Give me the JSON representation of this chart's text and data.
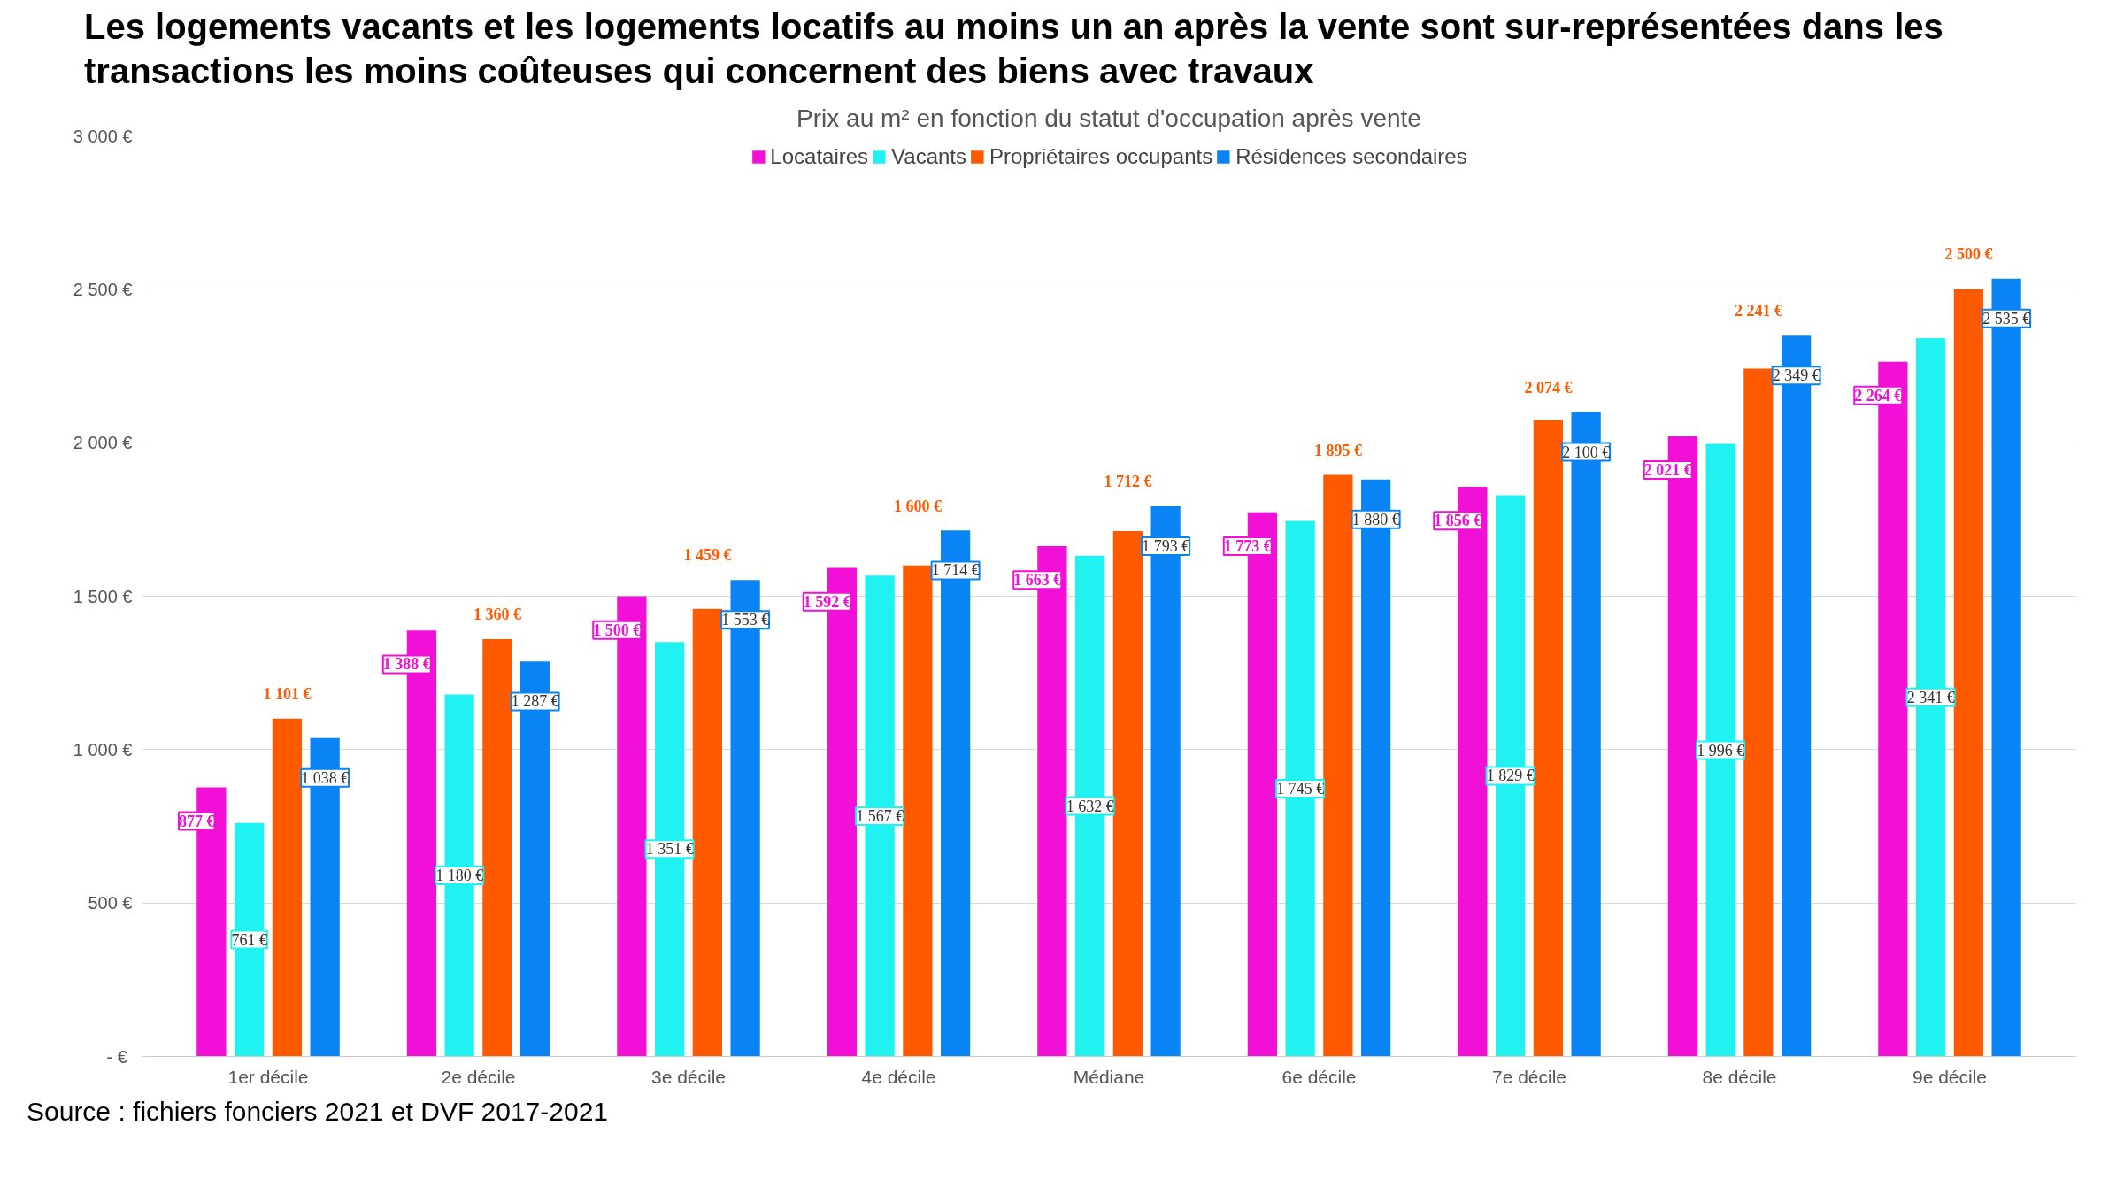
{
  "chart_data": {
    "type": "bar",
    "title": "Les logements vacants et les logements locatifs au moins un an après la vente sont sur-représentées dans les transactions les moins coûteuses qui concernent des biens avec travaux",
    "subtitle": "Prix au m² en fonction du statut d'occupation après vente",
    "categories": [
      "1er décile",
      "2e décile",
      "3e décile",
      "4e décile",
      "Médiane",
      "6e décile",
      "7e décile",
      "8e décile",
      "9e décile"
    ],
    "series": [
      {
        "name": "Locataires",
        "color": "#f20fd6",
        "values": [
          877,
          1388,
          1500,
          1592,
          1663,
          1773,
          1856,
          2021,
          2264
        ],
        "value_labels": [
          "877 €",
          "1 388 €",
          "1 500 €",
          "1 592 €",
          "1 663 €",
          "1 773 €",
          "1 856 €",
          "2 021 €",
          "2 264 €"
        ]
      },
      {
        "name": "Vacants",
        "color": "#1ff2f0",
        "values": [
          761,
          1180,
          1351,
          1567,
          1632,
          1745,
          1829,
          1996,
          2341
        ],
        "value_labels": [
          "761 €",
          "1 180 €",
          "1 351 €",
          "1 567 €",
          "1 632 €",
          "1 745 €",
          "1 829 €",
          "1 996 €",
          "2 341 €"
        ]
      },
      {
        "name": "Propriétaires occupants",
        "color": "#ff5a00",
        "values": [
          1101,
          1360,
          1459,
          1600,
          1712,
          1895,
          2074,
          2241,
          2500
        ],
        "value_labels": [
          "1 101 €",
          "1 360 €",
          "1 459 €",
          "1 600 €",
          "1 712 €",
          "1 895 €",
          "2 074 €",
          "2 241 €",
          "2 500 €"
        ]
      },
      {
        "name": "Résidences secondaires",
        "color": "#0a84f5",
        "values": [
          1038,
          1287,
          1553,
          1714,
          1793,
          1880,
          2100,
          2349,
          2535
        ],
        "value_labels": [
          "1 038 €",
          "1 287 €",
          "1 553 €",
          "1 714 €",
          "1 793 €",
          "1 880 €",
          "2 100 €",
          "2 349 €",
          "2 535 €"
        ]
      }
    ],
    "ylim": [
      0,
      3000
    ],
    "yticks": [
      {
        "value": 0,
        "label": "-  €"
      },
      {
        "value": 500,
        "label": "500 €"
      },
      {
        "value": 1000,
        "label": "1 000 €"
      },
      {
        "value": 1500,
        "label": "1 500 €"
      },
      {
        "value": 2000,
        "label": "2 000 €"
      },
      {
        "value": 2500,
        "label": "2 500 €"
      },
      {
        "value": 3000,
        "label": "3 000 €"
      }
    ],
    "grid": "y",
    "legend": "top",
    "annotations": [
      "Source : fichiers fonciers 2021 et DVF 2017-2021"
    ]
  }
}
